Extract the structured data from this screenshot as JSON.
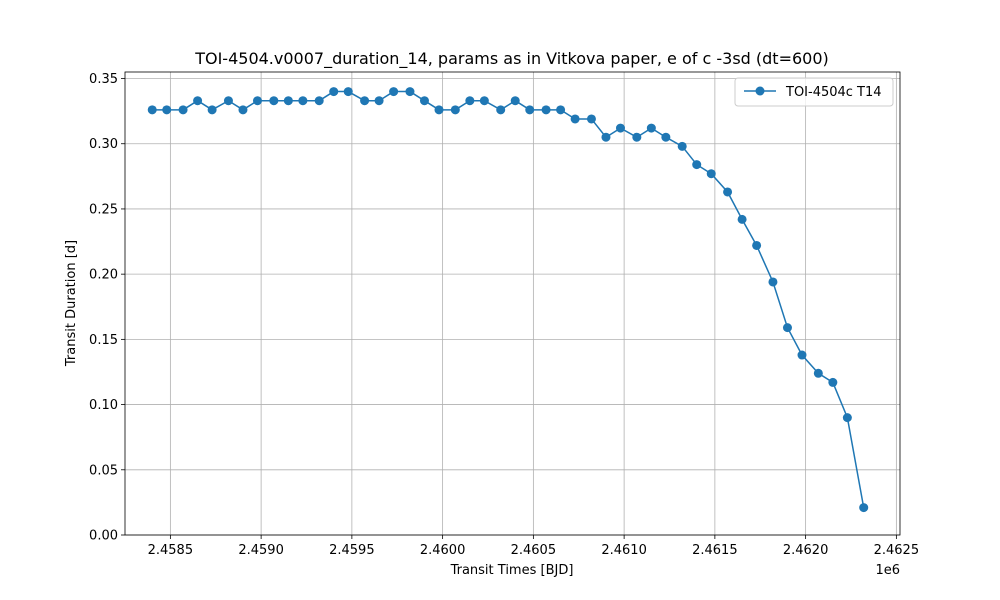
{
  "chart_data": {
    "type": "line",
    "title": "TOI-4504.v0007_duration_14, params as in Vitkova paper, e of c -3sd (dt=600)",
    "xlabel": "Transit Times [BJD]",
    "ylabel": "Transit Duration [d]",
    "x_offset_label": "1e6",
    "xlim": [
      2.45825,
      2.46252
    ],
    "ylim": [
      0.0,
      0.355
    ],
    "x_ticks": [
      2.4585,
      2.459,
      2.4595,
      2.46,
      2.4605,
      2.461,
      2.4615,
      2.462,
      2.4625
    ],
    "x_tick_labels": [
      "2.4585",
      "2.4590",
      "2.4595",
      "2.4600",
      "2.4605",
      "2.4610",
      "2.4615",
      "2.4620",
      "2.4625"
    ],
    "y_ticks": [
      0.0,
      0.05,
      0.1,
      0.15,
      0.2,
      0.25,
      0.3,
      0.35
    ],
    "y_tick_labels": [
      "0.00",
      "0.05",
      "0.10",
      "0.15",
      "0.20",
      "0.25",
      "0.30",
      "0.35"
    ],
    "grid": true,
    "legend_position": "top-right",
    "series": [
      {
        "name": "TOI-4504c T14",
        "color": "#1f77b4",
        "marker": "circle",
        "x": [
          2.4584,
          2.45848,
          2.45857,
          2.45865,
          2.45873,
          2.45882,
          2.4589,
          2.45898,
          2.45907,
          2.45915,
          2.45923,
          2.45932,
          2.4594,
          2.45948,
          2.45957,
          2.45965,
          2.45973,
          2.45982,
          2.4599,
          2.45998,
          2.46007,
          2.46015,
          2.46023,
          2.46032,
          2.4604,
          2.46048,
          2.46057,
          2.46065,
          2.46073,
          2.46082,
          2.4609,
          2.46098,
          2.46107,
          2.46115,
          2.46123,
          2.46132,
          2.4614,
          2.46148,
          2.46157,
          2.46165,
          2.46173,
          2.46182,
          2.4619,
          2.46198,
          2.46207,
          2.46215,
          2.46223,
          2.46232
        ],
        "y": [
          0.326,
          0.326,
          0.326,
          0.333,
          0.326,
          0.333,
          0.326,
          0.333,
          0.333,
          0.333,
          0.333,
          0.333,
          0.34,
          0.34,
          0.333,
          0.333,
          0.34,
          0.34,
          0.333,
          0.326,
          0.326,
          0.333,
          0.333,
          0.326,
          0.333,
          0.326,
          0.326,
          0.326,
          0.319,
          0.319,
          0.305,
          0.312,
          0.305,
          0.312,
          0.305,
          0.298,
          0.284,
          0.277,
          0.263,
          0.242,
          0.222,
          0.194,
          0.159,
          0.138,
          0.124,
          0.117,
          0.09,
          0.021
        ]
      }
    ]
  }
}
